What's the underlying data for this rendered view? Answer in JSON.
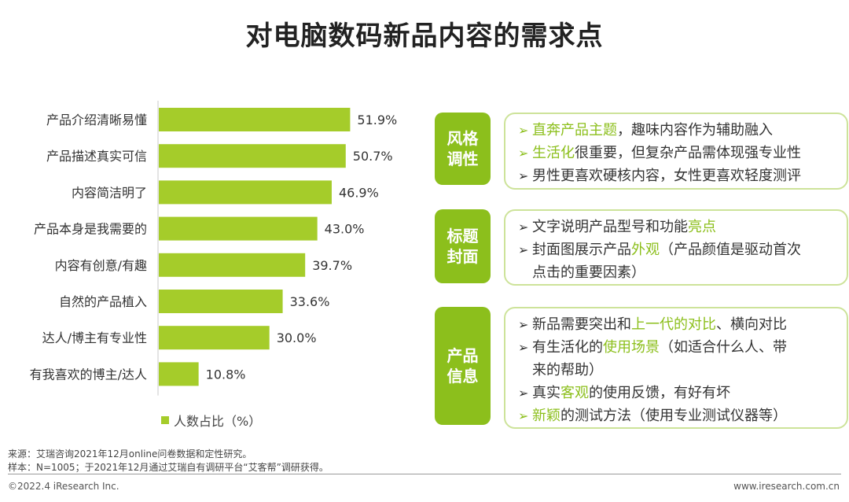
{
  "title": "对电脑数码新品内容的需求点",
  "colors": {
    "bar": "#a5cc2a",
    "accent": "#8cbf1c",
    "box_border": "#cde39a"
  },
  "chart_data": {
    "type": "bar",
    "orientation": "horizontal",
    "categories": [
      "产品介绍清晰易懂",
      "产品描述真实可信",
      "内容简洁明了",
      "产品本身是我需要的",
      "内容有创意/有趣",
      "自然的产品植入",
      "达人/博主有专业性",
      "有我喜欢的博主/达人"
    ],
    "values": [
      51.9,
      50.7,
      46.9,
      43.0,
      39.7,
      33.6,
      30.0,
      10.8
    ],
    "value_labels": [
      "51.9%",
      "50.7%",
      "46.9%",
      "43.0%",
      "39.7%",
      "33.6%",
      "30.0%",
      "10.8%"
    ],
    "series_name": "人数占比（%）",
    "grid": false,
    "legend_position": "bottom-left"
  },
  "panels": [
    {
      "tag_lines": [
        "风格",
        "调性"
      ],
      "lines": [
        {
          "arrow": "➢",
          "accent_arrow": true,
          "indent": false,
          "parts": [
            {
              "text": "直奔产品主题",
              "hl": true
            },
            {
              "text": "，趣味内容作为辅助融入",
              "hl": false
            }
          ]
        },
        {
          "arrow": "➢",
          "accent_arrow": true,
          "indent": false,
          "parts": [
            {
              "text": "生活化",
              "hl": true
            },
            {
              "text": "很重要，但复杂产品需体现强专业性",
              "hl": false
            }
          ]
        },
        {
          "arrow": "➢",
          "accent_arrow": false,
          "indent": false,
          "parts": [
            {
              "text": "男性更喜欢硬核内容，女性更喜欢轻度测评",
              "hl": false
            }
          ]
        }
      ]
    },
    {
      "tag_lines": [
        "标题",
        "封面"
      ],
      "lines": [
        {
          "arrow": "➢",
          "accent_arrow": false,
          "indent": false,
          "parts": [
            {
              "text": "文字说明产品型号和功能",
              "hl": false
            },
            {
              "text": "亮点",
              "hl": true
            }
          ]
        },
        {
          "arrow": "➢",
          "accent_arrow": false,
          "indent": false,
          "parts": [
            {
              "text": "封面图展示产品",
              "hl": false
            },
            {
              "text": "外观",
              "hl": true
            },
            {
              "text": "（产品颜值是驱动首次",
              "hl": false
            }
          ]
        },
        {
          "arrow": "",
          "accent_arrow": false,
          "indent": true,
          "parts": [
            {
              "text": "点击的重要因素）",
              "hl": false
            }
          ]
        }
      ]
    },
    {
      "tag_lines": [
        "产品",
        "信息"
      ],
      "lines": [
        {
          "arrow": "➢",
          "accent_arrow": false,
          "indent": false,
          "parts": [
            {
              "text": "新品需要突出和",
              "hl": false
            },
            {
              "text": "上一代的对比",
              "hl": true
            },
            {
              "text": "、横向对比",
              "hl": false
            }
          ]
        },
        {
          "arrow": "➢",
          "accent_arrow": false,
          "indent": false,
          "parts": [
            {
              "text": "有生活化的",
              "hl": false
            },
            {
              "text": "使用场景",
              "hl": true
            },
            {
              "text": "（如适合什么人、带",
              "hl": false
            }
          ]
        },
        {
          "arrow": "",
          "accent_arrow": false,
          "indent": true,
          "parts": [
            {
              "text": "来的帮助）",
              "hl": false
            }
          ]
        },
        {
          "arrow": "➢",
          "accent_arrow": false,
          "indent": false,
          "parts": [
            {
              "text": "真实",
              "hl": false
            },
            {
              "text": "客观",
              "hl": true
            },
            {
              "text": "的使用反馈，有好有坏",
              "hl": false
            }
          ]
        },
        {
          "arrow": "➢",
          "accent_arrow": true,
          "indent": false,
          "parts": [
            {
              "text": "新颖",
              "hl": true
            },
            {
              "text": "的测试方法（使用专业测试仪器等）",
              "hl": false
            }
          ]
        }
      ]
    }
  ],
  "footer": {
    "source": "来源：艾瑞咨询2021年12月online问卷数据和定性研究。",
    "sample": "样本：N=1005；于2021年12月通过艾瑞自有调研平台“艾客帮”调研获得。",
    "copyright": "©2022.4 iResearch Inc.",
    "website": "www.iresearch.com.cn"
  }
}
